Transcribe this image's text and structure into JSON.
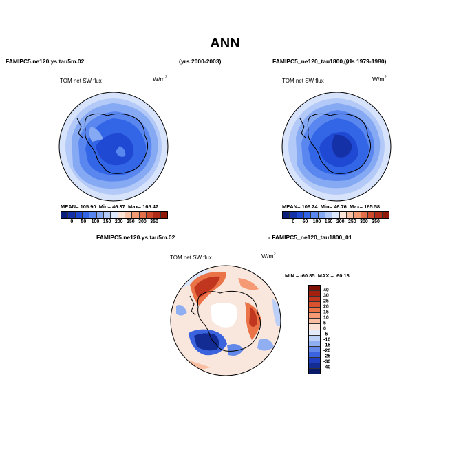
{
  "title": "ANN",
  "panel_top_left": {
    "case_name": "FAMIPC5.ne120.ys.tau5m.02",
    "years": "(yrs 2000-2003)",
    "variable": "TOM net SW flux",
    "units_base": "W/m",
    "units_exp": "2",
    "stats": {
      "mean_label": "MEAN=",
      "mean": "105.90",
      "min_label": "Min=",
      "min": "46.37",
      "max_label": "Max=",
      "max": "165.47"
    }
  },
  "panel_top_right": {
    "case_name": "FAMIPC5_ne120_tau1800_01",
    "years": "(yrs 1979-1980)",
    "variable": "TOM net SW flux",
    "units_base": "W/m",
    "units_exp": "2",
    "stats": {
      "mean_label": "MEAN=",
      "mean": "106.24",
      "min_label": "Min=",
      "min": "46.76",
      "max_label": "Max=",
      "max": "165.58"
    }
  },
  "panel_bottom": {
    "case_a": "FAMIPC5.ne120.ys.tau5m.02",
    "case_b": "- FAMIPC5_ne120_tau1800_01",
    "variable": "TOM net SW flux",
    "units_base": "W/m",
    "units_exp": "2",
    "stats": {
      "min_label": "MIN =",
      "min": "-60.85",
      "max_label": "MAX =",
      "max": "60.13"
    }
  },
  "colorbar_top": {
    "labels": [
      "0",
      "50",
      "100",
      "150",
      "200",
      "250",
      "300",
      "350"
    ],
    "colors": [
      "#0a1e7a",
      "#1431a8",
      "#1f49d2",
      "#3366e6",
      "#5a87ef",
      "#86a9f3",
      "#b3c9f7",
      "#dde7fb",
      "#fbe3d6",
      "#f7c1a5",
      "#f19a74",
      "#e3704b",
      "#cf4a2c",
      "#b12c18",
      "#8f1809"
    ]
  },
  "colorbar_diff": {
    "labels": [
      "40",
      "30",
      "25",
      "20",
      "15",
      "10",
      "5",
      "0",
      "-5",
      "-10",
      "-15",
      "-20",
      "-25",
      "-30",
      "-40"
    ],
    "colors": [
      "#7e1005",
      "#a3200f",
      "#c0361f",
      "#d8522f",
      "#eb7348",
      "#f59a74",
      "#f8bfa3",
      "#fbe2d5",
      "#e3ebfb",
      "#bccff7",
      "#90aef2",
      "#6289ea",
      "#3a63dd",
      "#1f3fc0",
      "#122c94",
      "#0a1a6a"
    ]
  }
}
